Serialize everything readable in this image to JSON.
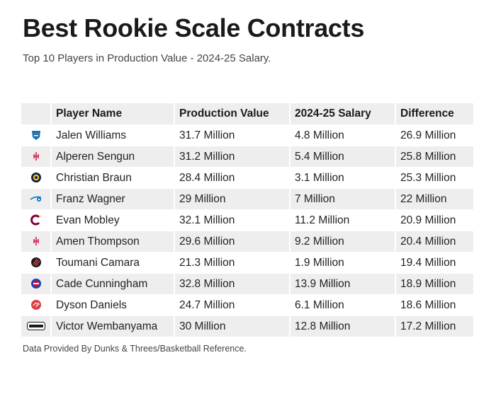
{
  "title": "Best Rookie Scale Contracts",
  "subtitle": "Top 10 Players in Production Value - 2024-25 Salary.",
  "footnote": "Data Provided By Dunks & Threes/Basketball Reference.",
  "chart_data": {
    "type": "table",
    "title": "Best Rookie Scale Contracts",
    "subtitle": "Top 10 Players in Production Value - 2024-25 Salary.",
    "columns": [
      "",
      "Player Name",
      "Production Value",
      "2024-25 Salary",
      "Difference"
    ],
    "rows": [
      {
        "team_logo": "okc-thunder-logo",
        "player": "Jalen Williams",
        "production_value": "31.7 Million",
        "salary": "4.8 Million",
        "difference": "26.9 Million"
      },
      {
        "team_logo": "houston-rockets-logo",
        "player": "Alperen Sengun",
        "production_value": "31.2 Million",
        "salary": "5.4 Million",
        "difference": "25.8 Million"
      },
      {
        "team_logo": "denver-nuggets-logo",
        "player": "Christian Braun",
        "production_value": "28.4 Million",
        "salary": "3.1 Million",
        "difference": "25.3 Million"
      },
      {
        "team_logo": "orlando-magic-logo",
        "player": "Franz Wagner",
        "production_value": "29 Million",
        "salary": "7 Million",
        "difference": "22 Million"
      },
      {
        "team_logo": "cleveland-cavaliers-logo",
        "player": "Evan Mobley",
        "production_value": "32.1 Million",
        "salary": "11.2 Million",
        "difference": "20.9 Million"
      },
      {
        "team_logo": "houston-rockets-logo",
        "player": "Amen Thompson",
        "production_value": "29.6 Million",
        "salary": "9.2 Million",
        "difference": "20.4 Million"
      },
      {
        "team_logo": "portland-trail-blazers-logo",
        "player": "Toumani Camara",
        "production_value": "21.3 Million",
        "salary": "1.9 Million",
        "difference": "19.4 Million"
      },
      {
        "team_logo": "detroit-pistons-logo",
        "player": "Cade Cunningham",
        "production_value": "32.8 Million",
        "salary": "13.9 Million",
        "difference": "18.9 Million"
      },
      {
        "team_logo": "atlanta-hawks-logo",
        "player": "Dyson Daniels",
        "production_value": "24.7 Million",
        "salary": "6.1 Million",
        "difference": "18.6 Million"
      },
      {
        "team_logo": "san-antonio-spurs-logo",
        "player": "Victor Wembanyama",
        "production_value": "30 Million",
        "salary": "12.8 Million",
        "difference": "17.2 Million"
      }
    ]
  },
  "colors": {
    "header_bg": "#eeeeee",
    "stripe_bg": "#eeeeee",
    "thunder_blue": "#007ac1",
    "thunder_orange": "#ef3b24",
    "rockets_red": "#ce1141",
    "nuggets_navy": "#0e2240",
    "nuggets_gold": "#fec524",
    "magic_blue": "#0077c0",
    "cavs_wine": "#860038",
    "cavs_gold": "#fdbb30",
    "blazers_red": "#e03a3e",
    "pistons_blue": "#1d42ba",
    "pistons_red": "#c8102e",
    "hawks_red": "#e03a3e",
    "spurs_black": "#1a1a1a"
  }
}
